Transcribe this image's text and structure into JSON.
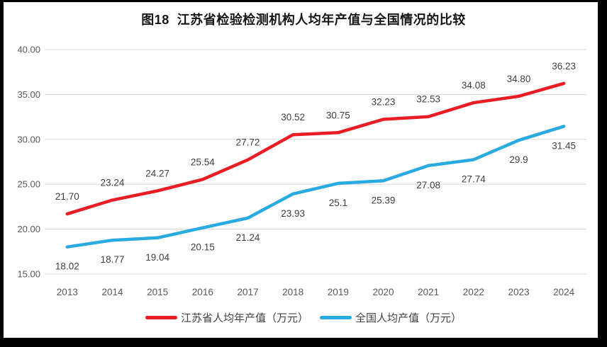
{
  "title": "图18  江苏省检验检测机构人均年产值与全国情况的比较",
  "colors": {
    "jiangsu": "#ec1c24",
    "national": "#29abe2",
    "grid": "#d9d9d9",
    "tick_text": "#595959",
    "data_label": "#3f3f3f"
  },
  "chart_data": {
    "type": "line",
    "title": "图18  江苏省检验检测机构人均年产值与全国情况的比较",
    "categories": [
      "2013",
      "2014",
      "2015",
      "2016",
      "2017",
      "2018",
      "2019",
      "2020",
      "2021",
      "2022",
      "2023",
      "2024"
    ],
    "series": [
      {
        "id": "jiangsu",
        "name": "江苏省人均年产值（万元）",
        "color_key": "jiangsu",
        "values": [
          21.7,
          23.24,
          24.27,
          25.54,
          27.72,
          30.52,
          30.75,
          32.23,
          32.53,
          34.08,
          34.8,
          36.23
        ],
        "labels": [
          "21.70",
          "23.24",
          "24.27",
          "25.54",
          "27.72",
          "30.52",
          "30.75",
          "32.23",
          "32.53",
          "34.08",
          "34.80",
          "36.23"
        ],
        "label_position": "above"
      },
      {
        "id": "national",
        "name": "全国人均产值（万元）",
        "color_key": "national",
        "values": [
          18.02,
          18.77,
          19.04,
          20.15,
          21.24,
          23.93,
          25.1,
          25.39,
          27.08,
          27.74,
          29.9,
          31.45
        ],
        "labels": [
          "18.02",
          "18.77",
          "19.04",
          "20.15",
          "21.24",
          "23.93",
          "25.1",
          "25.39",
          "27.08",
          "27.74",
          "29.9",
          "31.45"
        ],
        "label_position": "below"
      }
    ],
    "ylim": [
      15,
      40
    ],
    "ytick_step": 5,
    "ytick_labels": [
      "15.00",
      "20.00",
      "25.00",
      "30.00",
      "35.00",
      "40.00"
    ],
    "grid": "horizontal",
    "legend_position": "bottom"
  }
}
